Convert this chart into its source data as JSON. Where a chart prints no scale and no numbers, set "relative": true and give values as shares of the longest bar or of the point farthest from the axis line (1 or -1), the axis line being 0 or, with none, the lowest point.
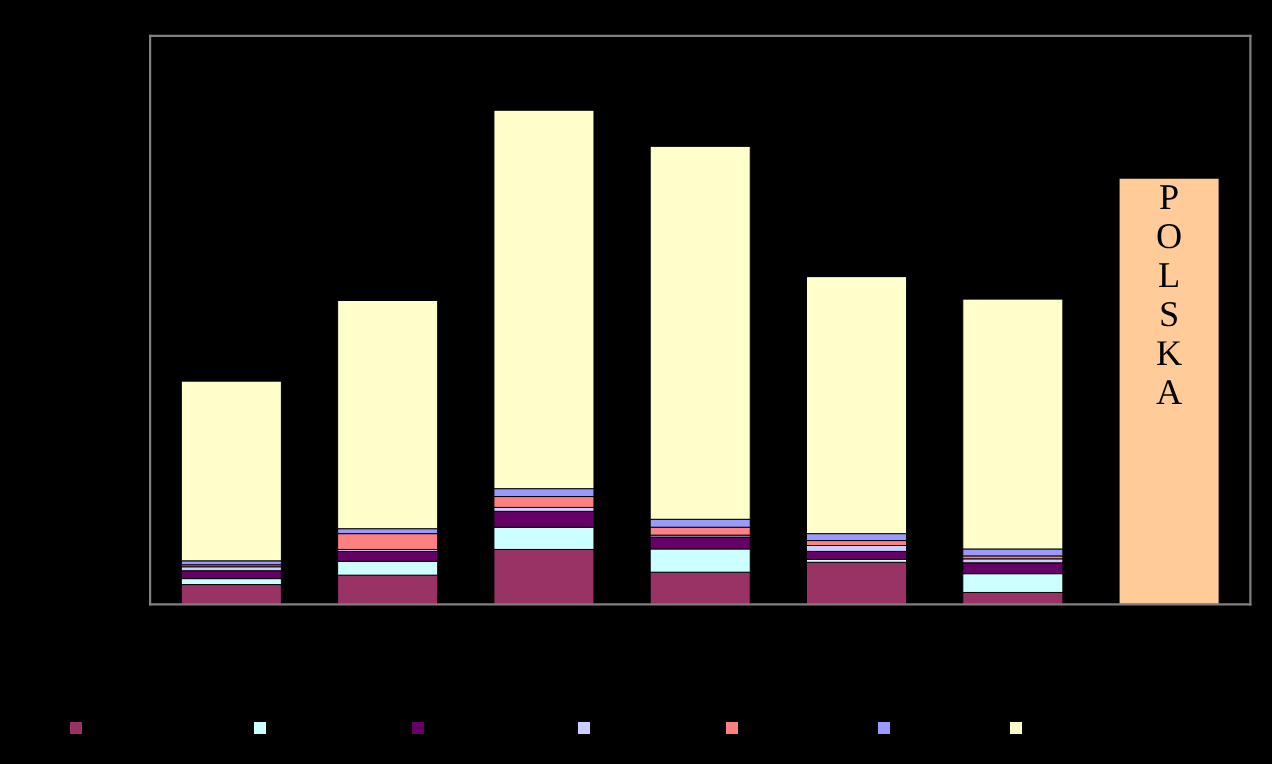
{
  "chart_data": {
    "type": "bar",
    "stacked": true,
    "relative": true,
    "categories": [
      null,
      null,
      null,
      null,
      null,
      null,
      null
    ],
    "series": [
      {
        "color": "#993366",
        "values": [
          0.04,
          0.059,
          0.111,
          0.065,
          0.085,
          0.024,
          null
        ]
      },
      {
        "color": "#ccffff",
        "values": [
          0.012,
          0.028,
          0.045,
          0.047,
          0.006,
          0.038,
          null
        ]
      },
      {
        "color": "#660066",
        "values": [
          0.016,
          0.02,
          0.032,
          0.024,
          0.016,
          0.022,
          null
        ]
      },
      {
        "color": "#ccccff",
        "values": [
          0.008,
          0.004,
          0.008,
          0.004,
          0.012,
          0.008,
          null
        ]
      },
      {
        "color": "#ff8080",
        "values": [
          0.004,
          0.032,
          0.022,
          0.016,
          0.01,
          0.006,
          null
        ]
      },
      {
        "color": "#9999ff",
        "values": [
          0.008,
          0.01,
          0.016,
          0.016,
          0.014,
          0.014,
          null
        ]
      },
      {
        "color": "#ffffcc",
        "values": [
          0.364,
          0.462,
          0.766,
          0.755,
          0.52,
          0.506,
          null
        ]
      },
      {
        "color": "#ffcc99",
        "values": [
          null,
          null,
          null,
          null,
          null,
          null,
          0.862
        ]
      }
    ],
    "annotations": [
      "POLSKA"
    ]
  }
}
